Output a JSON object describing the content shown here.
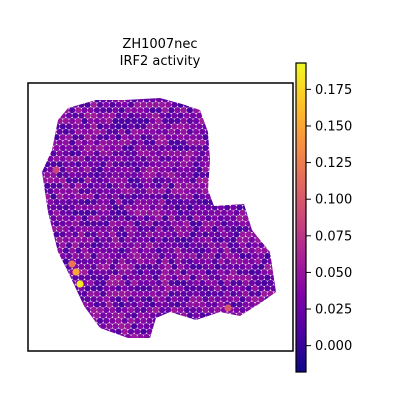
{
  "chart_data": {
    "type": "heatmap",
    "subtype": "spatial-hexbin",
    "title": [
      "ZH1007nec",
      "IRF2 activity"
    ],
    "xlabel": "",
    "ylabel": "",
    "axes_ticks_visible": false,
    "grid": false,
    "colormap": "plasma",
    "colorbar": {
      "position": "right",
      "range": [
        -0.018,
        0.193
      ],
      "ticks": [
        0.0,
        0.025,
        0.05,
        0.075,
        0.1,
        0.125,
        0.15,
        0.175
      ],
      "tick_labels": [
        "0.000",
        "0.025",
        "0.050",
        "0.075",
        "0.100",
        "0.125",
        "0.150",
        "0.175"
      ]
    },
    "spot_value_typical": 0.03,
    "hotspots": [
      {
        "region": "lower-left edge",
        "value": 0.185
      },
      {
        "region": "lower-left edge",
        "value": 0.15
      },
      {
        "region": "lower-left edge",
        "value": 0.12
      },
      {
        "region": "lower-right tip",
        "value": 0.1
      },
      {
        "region": "left edge",
        "value": 0.085
      }
    ]
  }
}
